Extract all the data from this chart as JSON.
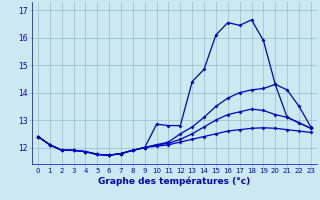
{
  "xlabel": "Graphe des températures (°c)",
  "background_color": "#cce8f0",
  "line_color": "#0000cc",
  "grid_color": "#99bbcc",
  "hours": [
    0,
    1,
    2,
    3,
    4,
    5,
    6,
    7,
    8,
    9,
    10,
    11,
    12,
    13,
    14,
    15,
    16,
    17,
    18,
    19,
    20,
    21,
    22,
    23
  ],
  "line1": [
    12.4,
    12.1,
    11.9,
    11.9,
    11.85,
    11.75,
    11.72,
    11.78,
    11.9,
    12.0,
    12.85,
    12.8,
    12.8,
    14.4,
    14.85,
    16.1,
    16.55,
    16.45,
    16.65,
    15.9,
    14.3,
    13.1,
    12.9,
    12.7
  ],
  "line2": [
    12.4,
    12.1,
    11.9,
    11.9,
    11.85,
    11.75,
    11.72,
    11.78,
    11.9,
    12.0,
    12.1,
    12.2,
    12.5,
    12.75,
    13.1,
    13.5,
    13.8,
    14.0,
    14.1,
    14.15,
    14.3,
    14.1,
    13.5,
    12.75
  ],
  "line3": [
    12.4,
    12.1,
    11.9,
    11.9,
    11.85,
    11.75,
    11.72,
    11.78,
    11.9,
    12.0,
    12.1,
    12.15,
    12.3,
    12.5,
    12.75,
    13.0,
    13.2,
    13.3,
    13.4,
    13.35,
    13.2,
    13.1,
    12.9,
    12.7
  ],
  "line4": [
    12.4,
    12.1,
    11.9,
    11.9,
    11.85,
    11.75,
    11.72,
    11.78,
    11.9,
    12.0,
    12.05,
    12.1,
    12.2,
    12.3,
    12.4,
    12.5,
    12.6,
    12.65,
    12.7,
    12.72,
    12.7,
    12.65,
    12.6,
    12.55
  ],
  "ylim": [
    11.4,
    17.3
  ],
  "yticks": [
    12,
    13,
    14,
    15,
    16,
    17
  ],
  "xticks": [
    0,
    1,
    2,
    3,
    4,
    5,
    6,
    7,
    8,
    9,
    10,
    11,
    12,
    13,
    14,
    15,
    16,
    17,
    18,
    19,
    20,
    21,
    22,
    23
  ]
}
